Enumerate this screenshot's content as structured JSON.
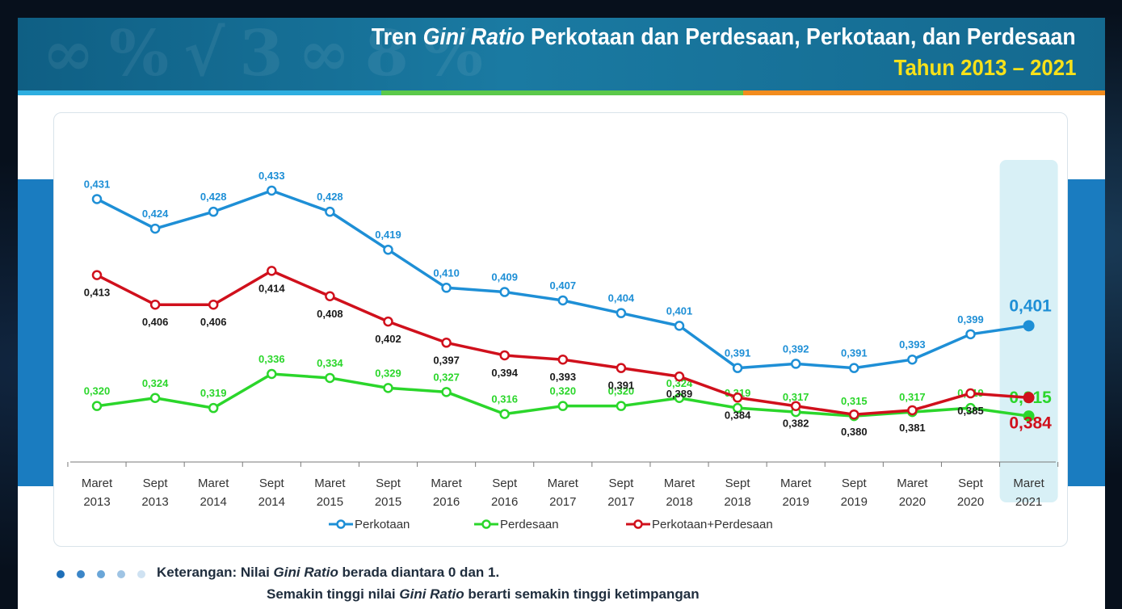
{
  "header": {
    "title_part1": "Tren ",
    "title_italic": "Gini Ratio",
    "title_part2": " Perkotaan dan Perdesaan, Perkotaan, dan Perdesaan",
    "subtitle": "Tahun 2013 – 2021"
  },
  "colors": {
    "header_bg": "#14698f",
    "subtitle": "#f7e11a",
    "stripe_blue": "#2eaee0",
    "stripe_green": "#5cc94a",
    "stripe_orange": "#f28c1e",
    "side_band": "#1a7cc0",
    "highlight": "#d8f0f6"
  },
  "chart_data": {
    "type": "line",
    "title": "",
    "xlabel": "",
    "ylabel": "",
    "categories": [
      [
        "Maret",
        "2013"
      ],
      [
        "Sept",
        "2013"
      ],
      [
        "Maret",
        "2014"
      ],
      [
        "Sept",
        "2014"
      ],
      [
        "Maret",
        "2015"
      ],
      [
        "Sept",
        "2015"
      ],
      [
        "Maret",
        "2016"
      ],
      [
        "Sept",
        "2016"
      ],
      [
        "Maret",
        "2017"
      ],
      [
        "Sept",
        "2017"
      ],
      [
        "Maret",
        "2018"
      ],
      [
        "Sept",
        "2018"
      ],
      [
        "Maret",
        "2019"
      ],
      [
        "Sept",
        "2019"
      ],
      [
        "Maret",
        "2020"
      ],
      [
        "Sept",
        "2020"
      ],
      [
        "Maret",
        "2021"
      ]
    ],
    "series": [
      {
        "name": "Perkotaan",
        "color": "#1e8fd6",
        "values": [
          0.431,
          0.424,
          0.428,
          0.433,
          0.428,
          0.419,
          0.41,
          0.409,
          0.407,
          0.404,
          0.401,
          0.391,
          0.392,
          0.391,
          0.393,
          0.399,
          0.401
        ],
        "labels": [
          "0,431",
          "0,424",
          "0,428",
          "0,433",
          "0,428",
          "0,419",
          "0,410",
          "0,409",
          "0,407",
          "0,404",
          "0,401",
          "0,391",
          "0,392",
          "0,391",
          "0,393",
          "0,399",
          "0,401"
        ]
      },
      {
        "name": "Perdesaan",
        "color": "#2bd62b",
        "values": [
          0.32,
          0.324,
          0.319,
          0.336,
          0.334,
          0.329,
          0.327,
          0.316,
          0.32,
          0.32,
          0.324,
          0.319,
          0.317,
          0.315,
          0.317,
          0.319,
          0.315
        ],
        "labels": [
          "0,320",
          "0,324",
          "0,319",
          "0,336",
          "0,334",
          "0,329",
          "0,327",
          "0,316",
          "0,320",
          "0,320",
          "0,324",
          "0,319",
          "0,317",
          "0,315",
          "0,317",
          "0,319",
          "0,315"
        ]
      },
      {
        "name": "Perkotaan+Perdesaan",
        "color": "#d0101c",
        "values": [
          0.413,
          0.406,
          0.406,
          0.414,
          0.408,
          0.402,
          0.397,
          0.394,
          0.393,
          0.391,
          0.389,
          0.384,
          0.382,
          0.38,
          0.381,
          0.385,
          0.384
        ],
        "labels": [
          "0,413",
          "0,406",
          "0,406",
          "0,414",
          "0,408",
          "0,402",
          "0,397",
          "0,394",
          "0,393",
          "0,391",
          "0,389",
          "0,384",
          "0,382",
          "0,380",
          "0,381",
          "0,385",
          "0,384"
        ]
      }
    ],
    "highlight_category_index": 16,
    "grid": false,
    "legend_position": "bottom"
  },
  "footer": {
    "note_label": "Keterangan: Nilai ",
    "note_italic1": "Gini Ratio",
    "note_rest1": " berada diantara 0 dan 1.",
    "note2_part1": "Semakin tinggi nilai ",
    "note_italic2": "Gini Ratio",
    "note2_part2": " berarti semakin tinggi ketimpangan",
    "dot_colors": [
      "#1e6fb8",
      "#3b86c8",
      "#6aa6d8",
      "#9fc4e4",
      "#cfe2f2"
    ]
  }
}
